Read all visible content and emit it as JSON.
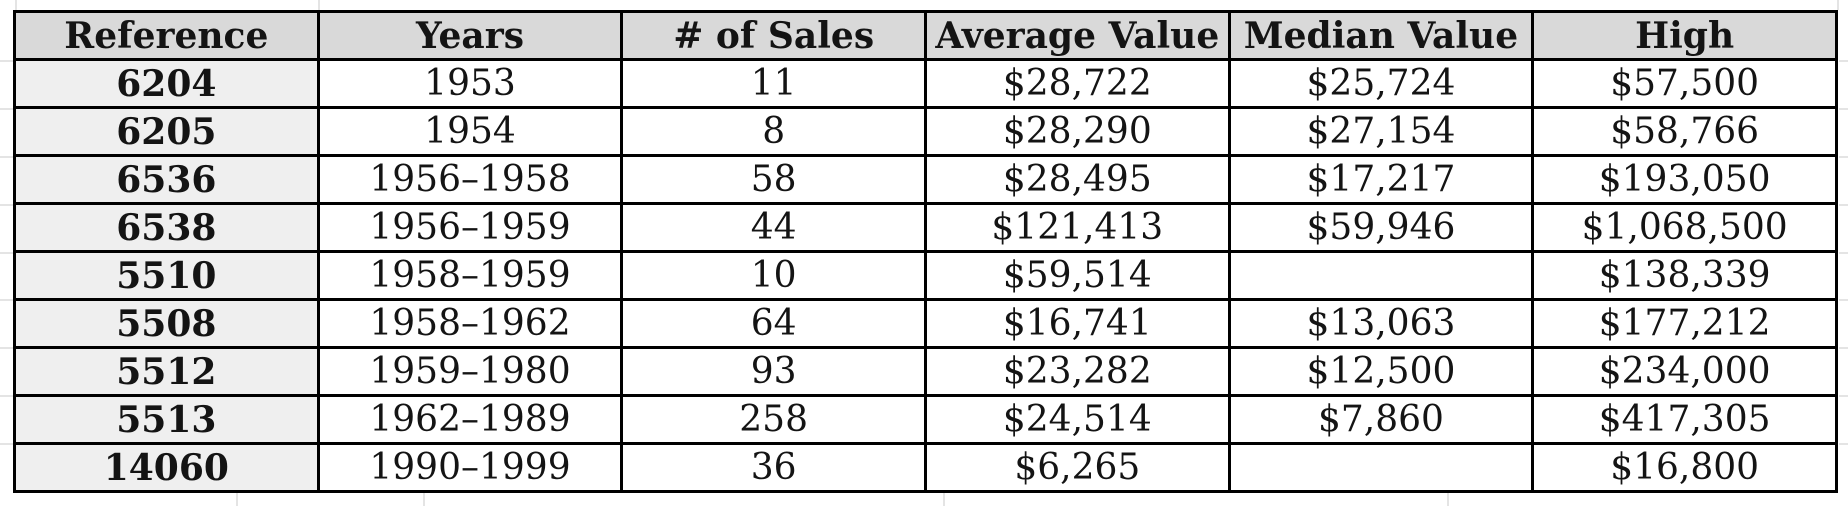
{
  "chart_data": {
    "type": "table",
    "columns": [
      "Reference",
      "Years",
      "# of Sales",
      "Average Value",
      "Median Value",
      "High"
    ],
    "rows": [
      [
        "6204",
        "1953",
        "11",
        "$28,722",
        "$25,724",
        "$57,500"
      ],
      [
        "6205",
        "1954",
        "8",
        "$28,290",
        "$27,154",
        "$58,766"
      ],
      [
        "6536",
        "1956–1958",
        "58",
        "$28,495",
        "$17,217",
        "$193,050"
      ],
      [
        "6538",
        "1956–1959",
        "44",
        "$121,413",
        "$59,946",
        "$1,068,500"
      ],
      [
        "5510",
        "1958–1959",
        "10",
        "$59,514",
        "",
        "$138,339"
      ],
      [
        "5508",
        "1958–1962",
        "64",
        "$16,741",
        "$13,063",
        "$177,212"
      ],
      [
        "5512",
        "1959–1980",
        "93",
        "$23,282",
        "$12,500",
        "$234,000"
      ],
      [
        "5513",
        "1962–1989",
        "258",
        "$24,514",
        "$7,860",
        "$417,305"
      ],
      [
        "14060",
        "1990–1999",
        "36",
        "$6,265",
        "",
        "$16,800"
      ]
    ],
    "layout": {
      "grid": "all black cell borders",
      "header_row": true,
      "bold_first_column": true
    }
  },
  "colors": {
    "header_background": "#d9d9d9",
    "reference_column_background": "#efefef",
    "cell_background": "#ffffff",
    "table_border": "#000000",
    "margin_gridline": "#e4e4e4",
    "text": "#141414"
  }
}
